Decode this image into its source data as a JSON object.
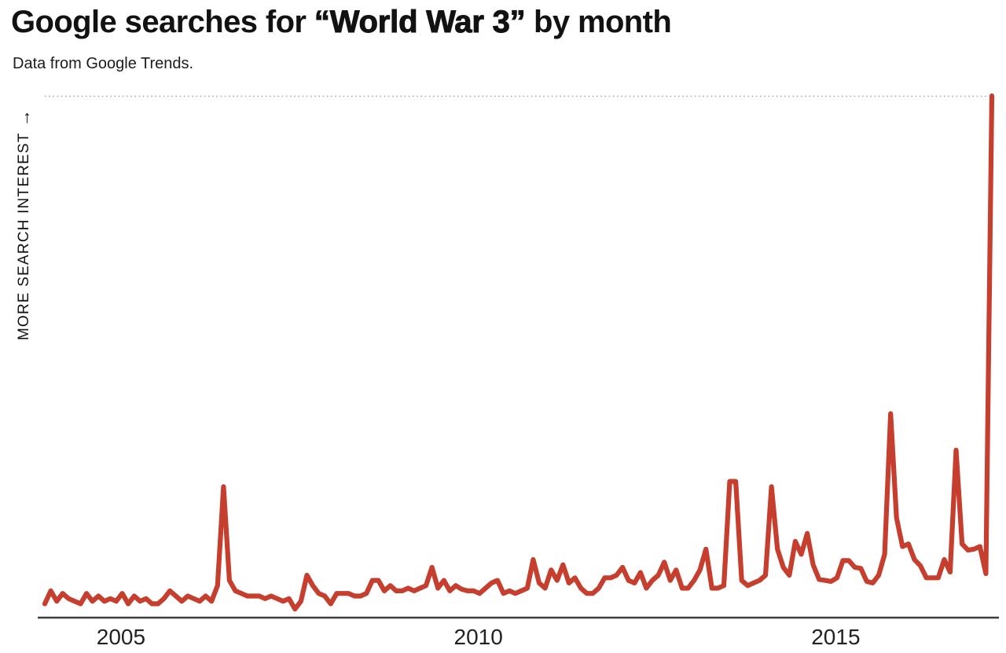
{
  "header": {
    "title_prefix": "Google searches for ",
    "title_emphasis": "“World War 3”",
    "title_suffix": " by month",
    "subtitle": "Data from Google Trends."
  },
  "y_axis": {
    "label": "MORE SEARCH INTEREST",
    "arrow": "→"
  },
  "colors": {
    "line": "#C63F2E",
    "axis": "#3d3d3d",
    "top_gridline": "#a8a8a8",
    "text": "#121212"
  },
  "chart_data": {
    "type": "line",
    "title": "Google searches for “World War 3” by month",
    "subtitle": "Data from Google Trends.",
    "xlabel": "",
    "ylabel": "MORE SEARCH INTEREST →",
    "x_unit": "month",
    "x_start": "2004-01",
    "x_end": "2017-04",
    "ylim": [
      0,
      100
    ],
    "grid": "single dotted gridline at y=100 (top)",
    "legend": "none",
    "x_tick_labels": [
      "2005",
      "2010",
      "2015"
    ],
    "x_tick_month_index": [
      12,
      72,
      132
    ],
    "series": [
      {
        "name": "Search interest",
        "values": [
          2.5,
          5,
          3,
          4.5,
          3.5,
          3,
          2.5,
          4.5,
          3,
          4,
          3,
          3.5,
          3,
          4.5,
          2.5,
          4,
          3,
          3.5,
          2.5,
          2.5,
          3.5,
          5,
          4,
          3,
          4,
          3.5,
          3,
          4,
          3,
          6,
          25,
          7,
          5,
          4.5,
          4,
          4,
          4,
          3.5,
          4,
          3.5,
          3,
          3.5,
          1.5,
          3,
          8,
          6,
          4.5,
          4,
          2.5,
          4.5,
          4.5,
          4.5,
          4,
          4,
          4.5,
          7,
          7,
          5,
          6,
          5,
          5,
          5.5,
          5,
          5.5,
          6,
          9.5,
          5.5,
          7,
          5,
          6,
          5.3,
          5,
          5,
          4.5,
          5.5,
          6.5,
          7,
          4.5,
          5,
          4.5,
          5,
          5.5,
          11,
          6.5,
          5.5,
          9,
          7,
          10,
          6.5,
          7.5,
          5.5,
          4.5,
          4.5,
          5.5,
          7.5,
          7.5,
          8,
          9.5,
          7,
          6.5,
          8.5,
          5.5,
          7,
          8,
          10.5,
          7,
          9,
          5.5,
          5.5,
          7,
          9,
          13,
          5.5,
          5.5,
          6,
          26,
          26,
          7,
          6,
          6.5,
          7,
          8,
          25,
          13,
          9.5,
          8,
          14.5,
          12,
          16,
          10,
          7.2,
          7,
          6.8,
          7.5,
          10.8,
          10.8,
          9.5,
          9.3,
          6.8,
          6.5,
          8,
          12,
          39,
          19,
          13.5,
          14,
          11,
          9.8,
          7.5,
          7.5,
          7.5,
          11,
          8.6,
          32,
          14,
          12.8,
          13,
          13.5,
          8.3,
          100
        ]
      }
    ]
  }
}
